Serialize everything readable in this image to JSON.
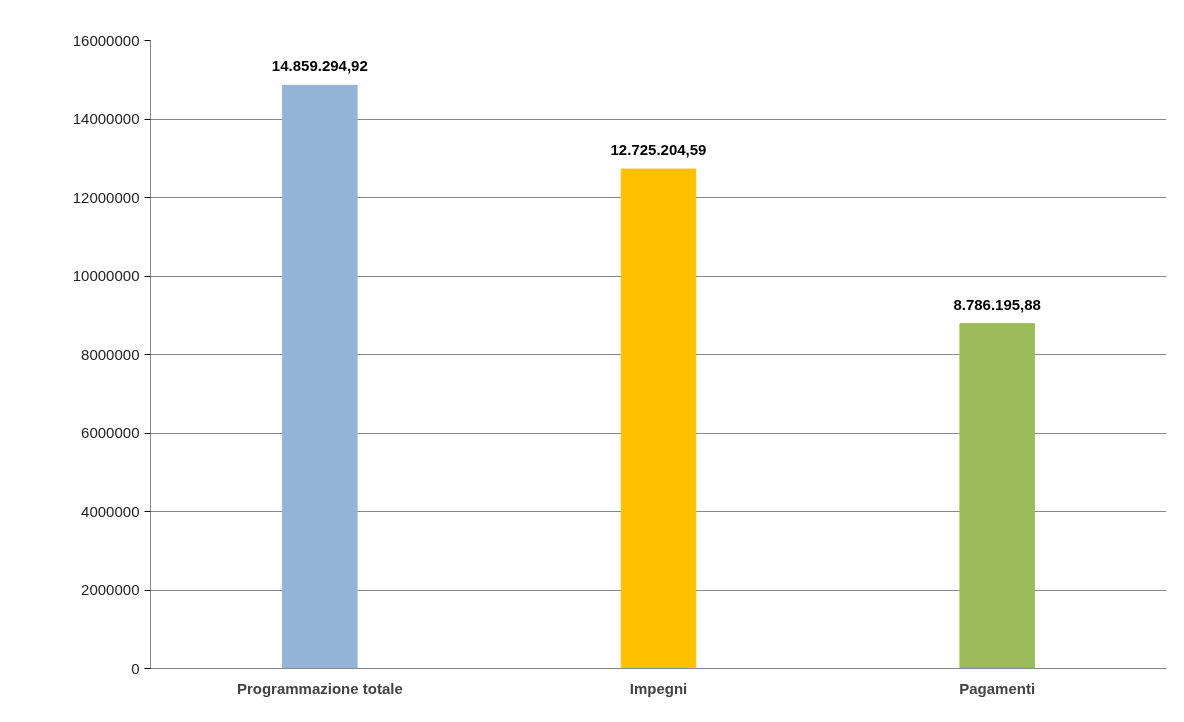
{
  "chart_data": {
    "type": "bar",
    "categories": [
      "Programmazione totale",
      "Impegni",
      "Pagamenti"
    ],
    "values": [
      14859294.92,
      12725204.59,
      8786195.88
    ],
    "colors": [
      "#95b3d7",
      "#ffc000",
      "#9bbb59"
    ],
    "value_labels": [
      "14.859.294,92",
      "12.725.204,59",
      "8.786.195,88"
    ],
    "ylim": [
      0,
      16000000
    ],
    "yticks": [
      0,
      2000000,
      4000000,
      6000000,
      8000000,
      10000000,
      12000000,
      14000000,
      16000000
    ],
    "grid": "y"
  }
}
